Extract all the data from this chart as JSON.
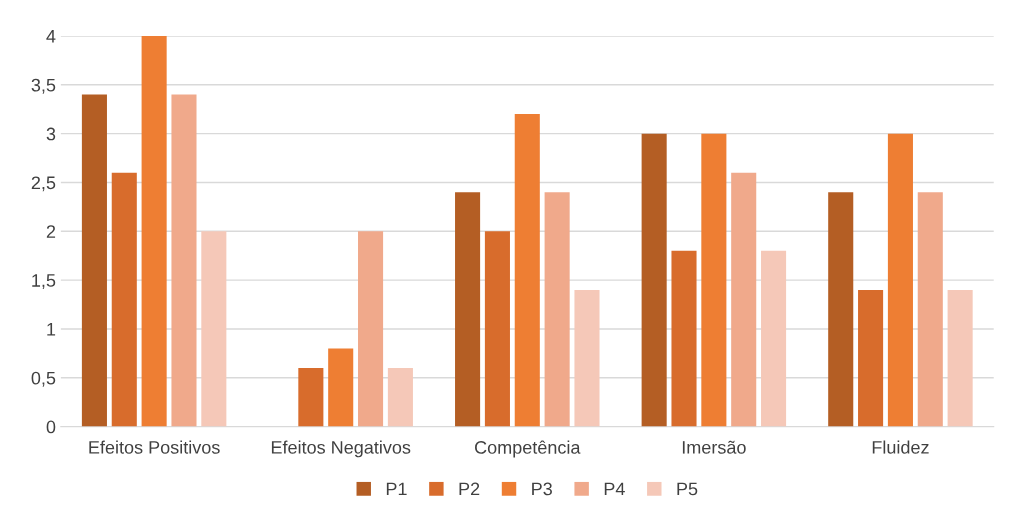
{
  "chart_data": {
    "type": "bar",
    "categories": [
      "Efeitos Positivos",
      "Efeitos Negativos",
      "Competência",
      "Imersão",
      "Fluidez"
    ],
    "series": [
      {
        "name": "P1",
        "color": "#b45e24",
        "values": [
          3.4,
          0,
          2.4,
          3,
          2.4
        ]
      },
      {
        "name": "P2",
        "color": "#d86c2c",
        "values": [
          2.6,
          0.6,
          2,
          1.8,
          1.4
        ]
      },
      {
        "name": "P3",
        "color": "#ee7e33",
        "values": [
          4,
          0.8,
          3.2,
          3,
          3
        ]
      },
      {
        "name": "P4",
        "color": "#f0a98b",
        "values": [
          3.4,
          2,
          2.4,
          2.6,
          2.4
        ]
      },
      {
        "name": "P5",
        "color": "#f5c8b8",
        "values": [
          2,
          0.6,
          1.4,
          1.8,
          1.4
        ]
      }
    ],
    "ylim": [
      0,
      4
    ],
    "yticks": [
      0,
      {
        "value": 0.5,
        "label": "0,5"
      },
      1,
      {
        "value": 1.5,
        "label": "1,5"
      },
      2,
      {
        "value": 2.5,
        "label": "2,5"
      },
      3,
      {
        "value": 3.5,
        "label": "3,5"
      },
      4
    ],
    "grid": "y",
    "legend": "bottom"
  }
}
